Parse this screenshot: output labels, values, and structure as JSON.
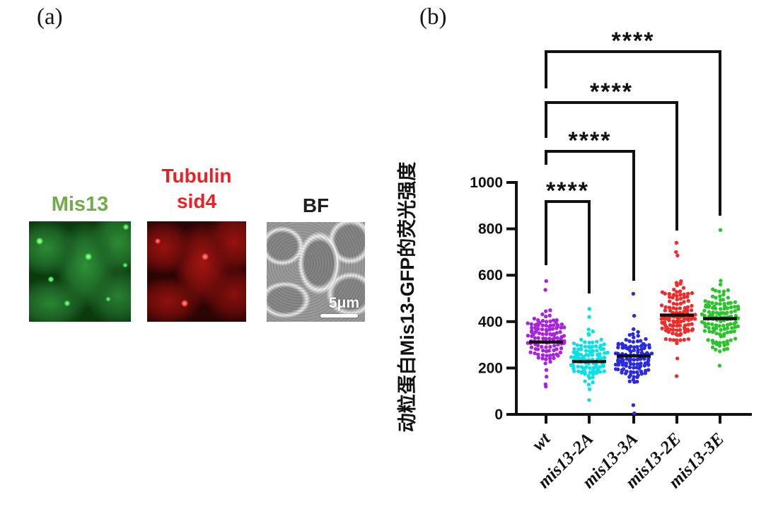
{
  "panel_a": {
    "label": "(a)",
    "images": [
      {
        "name": "mis13-gfp-micrograph",
        "label": "Mis13",
        "label_color": "#70ad47"
      },
      {
        "name": "tubulin-sid4-micrograph",
        "label": "Tubulin sid4",
        "label_lines": [
          "Tubulin",
          "sid4"
        ],
        "label_color": "#f01e23"
      },
      {
        "name": "brightfield-micrograph",
        "label": "BF",
        "label_color": "#1f1f1f",
        "scalebar_text": "5μm"
      }
    ]
  },
  "panel_b": {
    "label": "(b)"
  },
  "chart_data": {
    "type": "scatter",
    "subtype": "beeswarm-column-scatter",
    "title": "",
    "xlabel": "",
    "ylabel": "动粒蛋白Mis13-GFP的荧光强度",
    "ylim": [
      0,
      1000
    ],
    "yticks": [
      0,
      200,
      400,
      600,
      800,
      1000
    ],
    "grid": false,
    "legend": false,
    "categories": [
      "wt",
      "mis13-2A",
      "mis13-3A",
      "mis13-2E",
      "mis13-3E"
    ],
    "series": [
      {
        "name": "wt",
        "color": "#a922dd",
        "median": 312,
        "spread_sd": 58,
        "core_range": [
          150,
          470
        ],
        "outliers": [
          575,
          537,
          130,
          120
        ],
        "n": 115
      },
      {
        "name": "mis13-2A",
        "color": "#0ae0e6",
        "median": 228,
        "spread_sd": 52,
        "core_range": [
          105,
          390
        ],
        "outliers": [
          455,
          420,
          62
        ],
        "n": 110
      },
      {
        "name": "mis13-3A",
        "color": "#2a2ade",
        "median": 252,
        "spread_sd": 62,
        "core_range": [
          95,
          400
        ],
        "outliers": [
          520,
          425,
          40,
          5
        ],
        "n": 118
      },
      {
        "name": "mis13-2E",
        "color": "#f12a2a",
        "median": 428,
        "spread_sd": 64,
        "core_range": [
          240,
          620
        ],
        "outliers": [
          740,
          700,
          685,
          165
        ],
        "n": 122
      },
      {
        "name": "mis13-3E",
        "color": "#2bc42b",
        "median": 413,
        "spread_sd": 60,
        "core_range": [
          235,
          615
        ],
        "outliers": [
          795,
          560,
          210
        ],
        "n": 122
      }
    ],
    "median_line": {
      "color": "#111111"
    },
    "comparisons": [
      {
        "a": "wt",
        "b": "mis13-2A",
        "label": "****"
      },
      {
        "a": "wt",
        "b": "mis13-3A",
        "label": "****"
      },
      {
        "a": "wt",
        "b": "mis13-2E",
        "label": "****"
      },
      {
        "a": "wt",
        "b": "mis13-3E",
        "label": "****"
      }
    ]
  }
}
